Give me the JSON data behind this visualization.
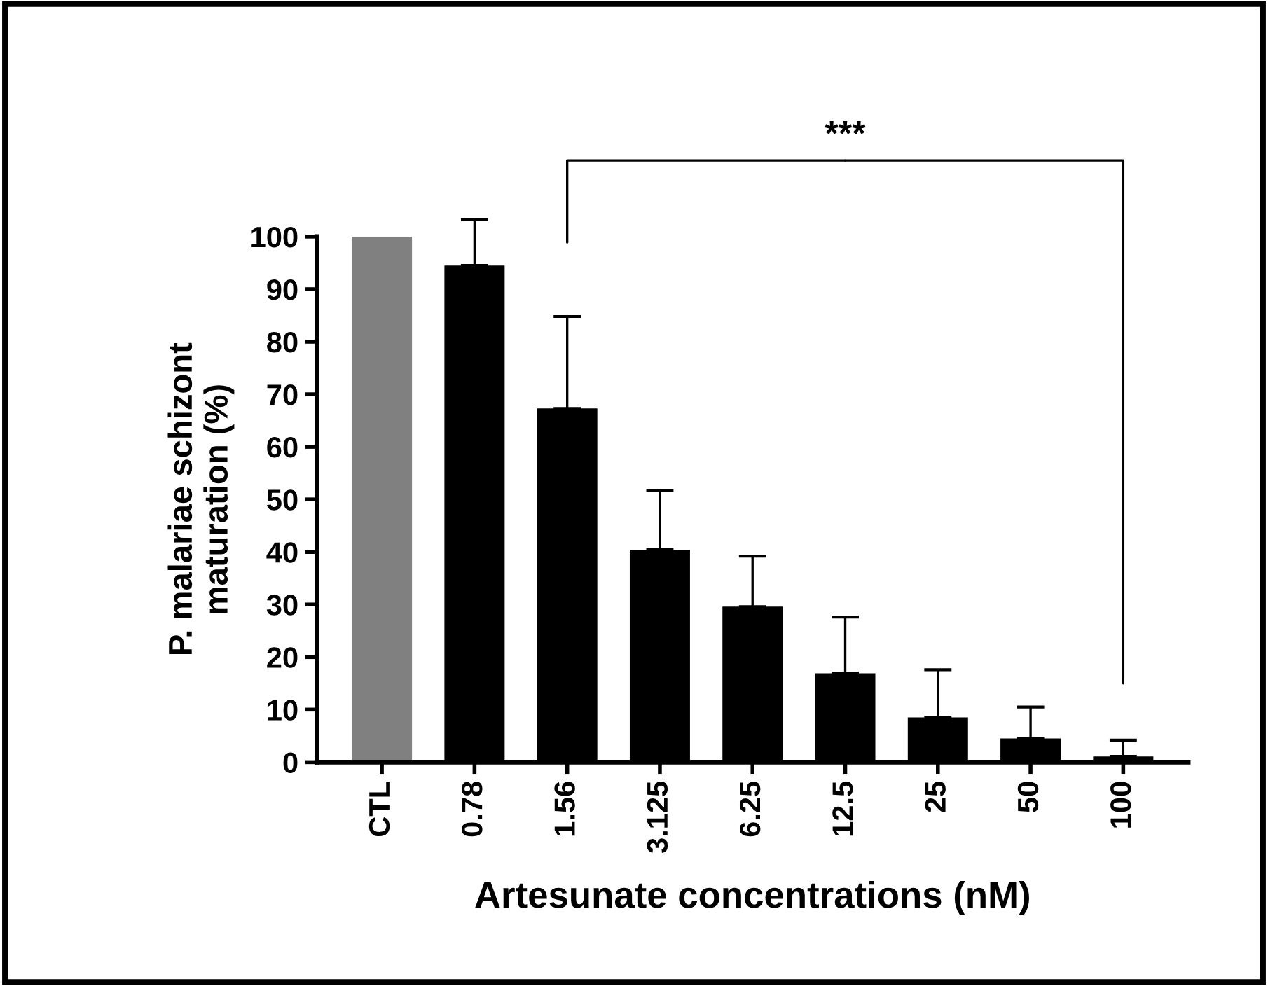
{
  "chart_data": {
    "type": "bar",
    "xlabel": "Artesunate concentrations (nM)",
    "ylabel": "P. malariae schizont\nmaturation (%)",
    "categories": [
      "CTL",
      "0.78",
      "1.56",
      "3.125",
      "6.25",
      "12.5",
      "25",
      "50",
      "100"
    ],
    "values": [
      100,
      94.5,
      67.3,
      40.4,
      29.6,
      16.9,
      8.5,
      4.5,
      1.1
    ],
    "errors": [
      null,
      [
        94.5,
        103.2
      ],
      [
        67.3,
        84.8
      ],
      [
        40.4,
        51.7
      ],
      [
        29.6,
        39.2
      ],
      [
        16.9,
        27.6
      ],
      [
        8.5,
        17.6
      ],
      [
        4.5,
        10.5
      ],
      [
        1.1,
        4.2
      ]
    ],
    "colors": [
      "#808080",
      "#000000",
      "#000000",
      "#000000",
      "#000000",
      "#000000",
      "#000000",
      "#000000",
      "#000000"
    ],
    "ylim": [
      0,
      100
    ],
    "yticks": [
      0,
      10,
      20,
      30,
      40,
      50,
      60,
      70,
      80,
      90,
      100
    ],
    "annotations": [
      "***"
    ],
    "grid": false,
    "legend": false
  }
}
